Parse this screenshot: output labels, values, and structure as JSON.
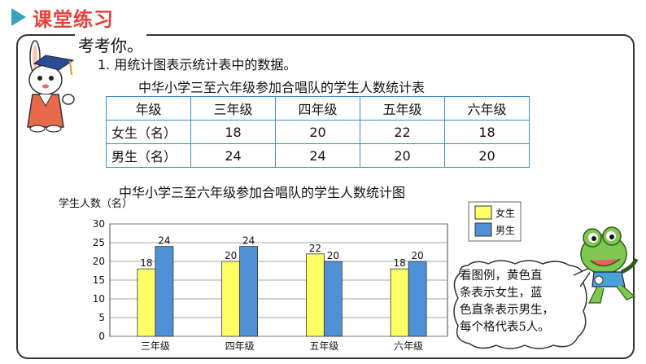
{
  "header": {
    "title": "课堂练习"
  },
  "intro": "考考你。",
  "question": "1. 用统计图表示统计表中的数据。",
  "table": {
    "title": "中华小学三至六年级参加合唱队的学生人数统计表",
    "headers": [
      "年级",
      "三年级",
      "四年级",
      "五年级",
      "六年级"
    ],
    "rows": [
      {
        "label": "女生（名）",
        "values": [
          "18",
          "20",
          "22",
          "18"
        ]
      },
      {
        "label": "男生（名）",
        "values": [
          "24",
          "24",
          "20",
          "20"
        ]
      }
    ]
  },
  "chart_data": {
    "type": "bar",
    "title": "中华小学三至六年级参加合唱队的学生人数统计图",
    "ylabel": "学生人数（名）",
    "xlabel": "",
    "categories": [
      "三年级",
      "四年级",
      "五年级",
      "六年级"
    ],
    "series": [
      {
        "name": "女生",
        "values": [
          18,
          20,
          22,
          18
        ],
        "color": "#ffff66"
      },
      {
        "name": "男生",
        "values": [
          24,
          24,
          20,
          20
        ],
        "color": "#4f91d6"
      }
    ],
    "ylim": [
      0,
      30
    ],
    "yticks": [
      "0",
      "5",
      "10",
      "15",
      "20",
      "25",
      "30"
    ],
    "grid": true,
    "legend": "top-right"
  },
  "bubble": {
    "lines": [
      "看图例，黄色直",
      "条表示女生，蓝",
      "色直条表示男生，",
      "每个格代表5人。"
    ]
  },
  "colors": {
    "accent_title": "#e8413c",
    "header_triangle": "#3aa0c0",
    "table_border": "#3a8fc4"
  },
  "icons": {
    "mascot_left": "rabbit-graduate-icon",
    "mascot_right": "frog-icon"
  }
}
